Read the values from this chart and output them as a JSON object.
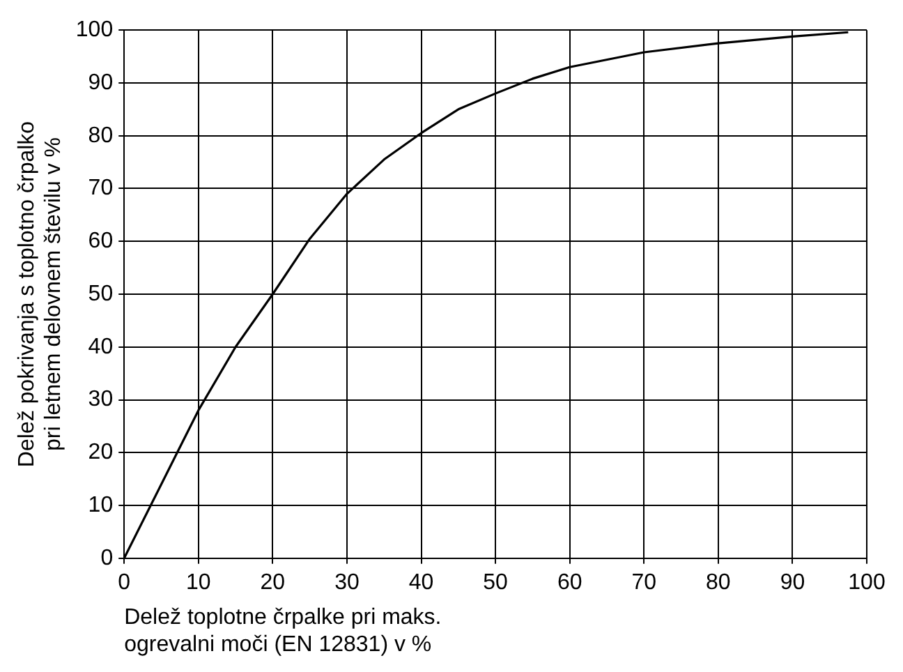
{
  "chart_data": {
    "type": "line",
    "xlabel": "Delež toplotne črpalke pri maks.\nogrevalni moči (EN 12831) v %",
    "ylabel": "Delež pokrivanja s toplotno črpalko\npri letnem delovnem številu v %",
    "x": [
      0,
      5,
      10,
      15,
      20,
      25,
      30,
      35,
      40,
      45,
      50,
      55,
      60,
      70,
      80,
      90,
      97.5
    ],
    "series": [
      {
        "color": "#000000",
        "values": [
          0,
          14,
          28,
          40,
          50,
          60.5,
          69,
          75.5,
          80.5,
          85,
          88,
          90.8,
          93,
          95.8,
          97.5,
          98.8,
          99.6
        ]
      }
    ],
    "xlim": [
      0,
      100
    ],
    "xticks": [
      0,
      10,
      20,
      30,
      40,
      50,
      60,
      70,
      80,
      90,
      100
    ],
    "ylim": [
      0,
      100
    ],
    "yticks": [
      0,
      10,
      20,
      30,
      40,
      50,
      60,
      70,
      80,
      90,
      100
    ],
    "grid": true,
    "legend": false,
    "marker": "none",
    "line_style": "solid"
  }
}
